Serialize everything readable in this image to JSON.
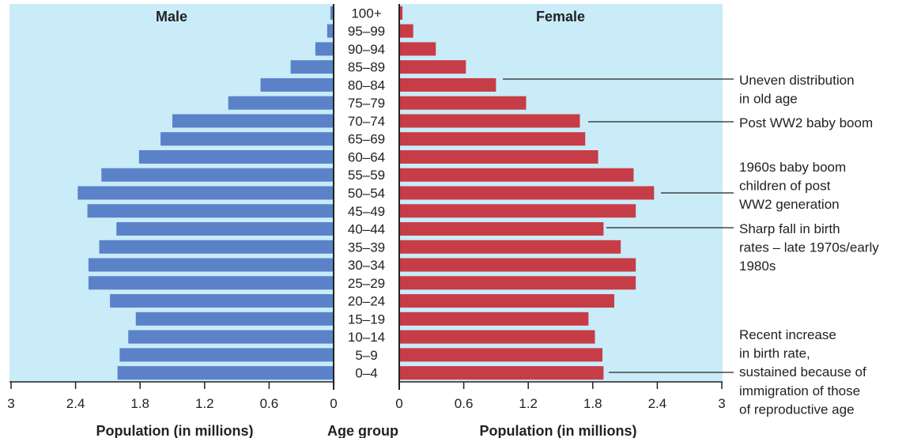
{
  "chart_data": {
    "type": "bar",
    "orientation": "horizontal",
    "subtype": "population-pyramid",
    "categories": [
      "100+",
      "95–99",
      "90–94",
      "85–89",
      "80–84",
      "75–79",
      "70–74",
      "65–69",
      "60–64",
      "55–59",
      "50–54",
      "45–49",
      "40–44",
      "35–39",
      "30–34",
      "25–29",
      "20–24",
      "15–19",
      "10–14",
      "5–9",
      "0–4"
    ],
    "series": [
      {
        "name": "Male",
        "color": "#5b82c9",
        "values": [
          0.03,
          0.06,
          0.17,
          0.4,
          0.68,
          0.98,
          1.5,
          1.61,
          1.81,
          2.16,
          2.38,
          2.29,
          2.02,
          2.18,
          2.28,
          2.28,
          2.08,
          1.84,
          1.91,
          1.99,
          2.01
        ]
      },
      {
        "name": "Female",
        "color": "#c63d47",
        "values": [
          0.03,
          0.13,
          0.34,
          0.62,
          0.9,
          1.18,
          1.68,
          1.73,
          1.85,
          2.18,
          2.37,
          2.2,
          1.9,
          2.06,
          2.2,
          2.2,
          2.0,
          1.76,
          1.82,
          1.89,
          1.9
        ]
      }
    ],
    "panel_titles": {
      "left": "Male",
      "right": "Female"
    },
    "xlabel_left": "Population (in millions)",
    "xlabel_center": "Age group",
    "xlabel_right": "Population (in millions)",
    "xlim": [
      0,
      3
    ],
    "ticks": [
      0,
      0.6,
      1.2,
      1.8,
      2.4,
      3
    ],
    "tick_labels": [
      "0",
      "0.6",
      "1.2",
      "1.8",
      "2.4",
      "3"
    ],
    "grid": false,
    "background_color": "#c9ecf8",
    "annotations": [
      {
        "text_lines": [
          "Uneven distribution",
          "in old age"
        ],
        "category": "80–84"
      },
      {
        "text_lines": [
          "Post WW2 baby boom"
        ],
        "category": "70–74"
      },
      {
        "text_lines": [
          "1960s baby boom",
          "children of post",
          "WW2 generation"
        ],
        "category": "50–54"
      },
      {
        "text_lines": [
          "Sharp fall in birth",
          "rates – late 1970s/early",
          "1980s"
        ],
        "category": "40–44"
      },
      {
        "text_lines": [
          "Recent increase",
          "in birth rate,",
          "sustained because of",
          "immigration of those",
          "of reproductive age"
        ],
        "category": "0–4"
      }
    ]
  }
}
